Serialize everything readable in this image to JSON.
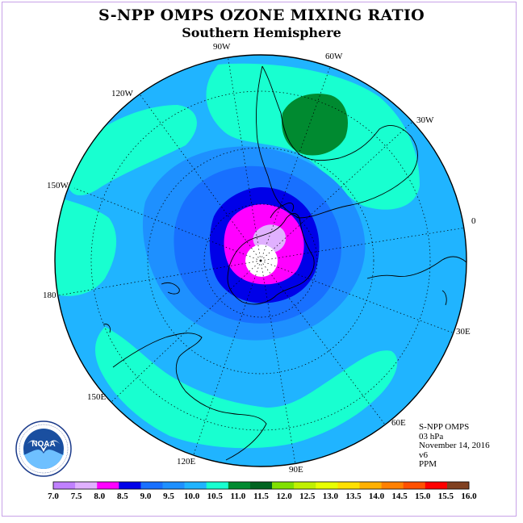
{
  "title": "S-NPP OMPS OZONE MIXING RATIO",
  "subtitle": "Southern Hemisphere",
  "longitude_labels": [
    "90W",
    "60W",
    "120W",
    "30W",
    "150W",
    "0",
    "180",
    "30E",
    "150E",
    "60E",
    "120E",
    "90E"
  ],
  "info": {
    "instrument": "S-NPP OMPS",
    "level": "03 hPa",
    "date": "November 14, 2016",
    "version": "v6",
    "units": "PPM"
  },
  "logo": {
    "text": "NOAA"
  },
  "colorbar": {
    "ticks": [
      "7.0",
      "7.5",
      "8.0",
      "8.5",
      "9.0",
      "9.5",
      "10.0",
      "10.5",
      "11.0",
      "11.5",
      "12.0",
      "12.5",
      "13.0",
      "13.5",
      "14.0",
      "14.5",
      "15.0",
      "15.5",
      "16.0"
    ],
    "colors": [
      "#c080ff",
      "#e0b0ff",
      "#ff00ff",
      "#0000e8",
      "#1870ff",
      "#1e90ff",
      "#20b4ff",
      "#18ffd0",
      "#008a30",
      "#006420",
      "#80e000",
      "#c0f000",
      "#e8ff00",
      "#ffe000",
      "#ffb000",
      "#ff8000",
      "#ff5000",
      "#ff0000",
      "#804020"
    ]
  },
  "colors": {
    "background_contour": "#20b4ff",
    "frame": "#c8a2e8"
  }
}
